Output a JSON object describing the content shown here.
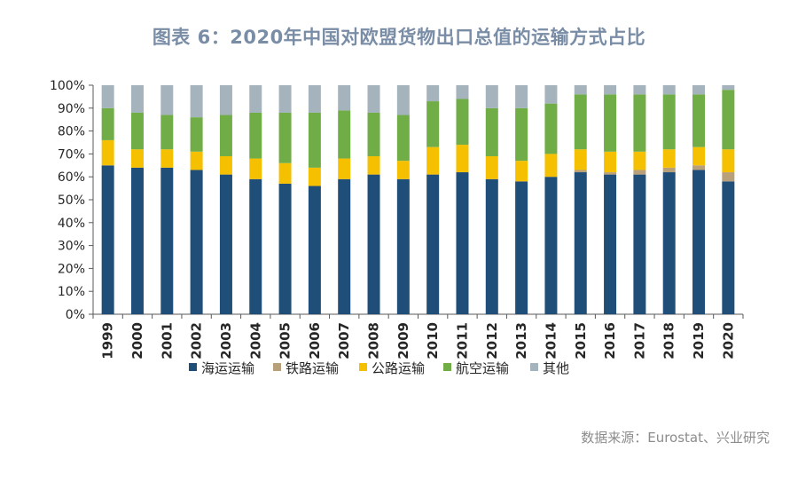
{
  "title": "图表 6：2020年中国对欧盟货物出口总值的运输方式占比",
  "source": "数据来源：Eurostat、兴业研究",
  "chart_data": {
    "type": "bar",
    "stacked": true,
    "title": "图表 6：2020年中国对欧盟货物出口总值的运输方式占比",
    "xlabel": "",
    "ylabel": "",
    "ylim": [
      0,
      100
    ],
    "y_ticks": [
      "0%",
      "10%",
      "20%",
      "30%",
      "40%",
      "50%",
      "60%",
      "70%",
      "80%",
      "90%",
      "100%"
    ],
    "legend_position": "bottom",
    "categories": [
      "1999",
      "2000",
      "2001",
      "2002",
      "2003",
      "2004",
      "2005",
      "2006",
      "2007",
      "2008",
      "2009",
      "2010",
      "2011",
      "2012",
      "2013",
      "2014",
      "2015",
      "2016",
      "2017",
      "2018",
      "2019",
      "2020"
    ],
    "series": [
      {
        "name": "海运运输",
        "color": "#1f4e79",
        "values": [
          65,
          64,
          64,
          63,
          61,
          59,
          57,
          56,
          59,
          61,
          59,
          61,
          62,
          59,
          58,
          60,
          62,
          61,
          61,
          62,
          63,
          58
        ]
      },
      {
        "name": "铁路运输",
        "color": "#b8a07a",
        "values": [
          0,
          0,
          0,
          0,
          0,
          0,
          0,
          0,
          0,
          0,
          0,
          0,
          0,
          0,
          0,
          0,
          1,
          1,
          2,
          2,
          2,
          4
        ]
      },
      {
        "name": "公路运输",
        "color": "#f5c000",
        "values": [
          11,
          8,
          8,
          8,
          8,
          9,
          9,
          8,
          9,
          8,
          8,
          12,
          12,
          10,
          9,
          10,
          9,
          9,
          8,
          8,
          8,
          10
        ]
      },
      {
        "name": "航空运输",
        "color": "#70ad47",
        "values": [
          14,
          16,
          15,
          15,
          18,
          20,
          22,
          24,
          21,
          19,
          20,
          20,
          20,
          21,
          23,
          22,
          24,
          25,
          25,
          24,
          23,
          26
        ]
      },
      {
        "name": "其他",
        "color": "#a5b3bd",
        "values": [
          10,
          12,
          13,
          14,
          13,
          12,
          12,
          12,
          11,
          12,
          13,
          7,
          6,
          10,
          10,
          8,
          4,
          4,
          4,
          4,
          4,
          2
        ]
      }
    ]
  }
}
